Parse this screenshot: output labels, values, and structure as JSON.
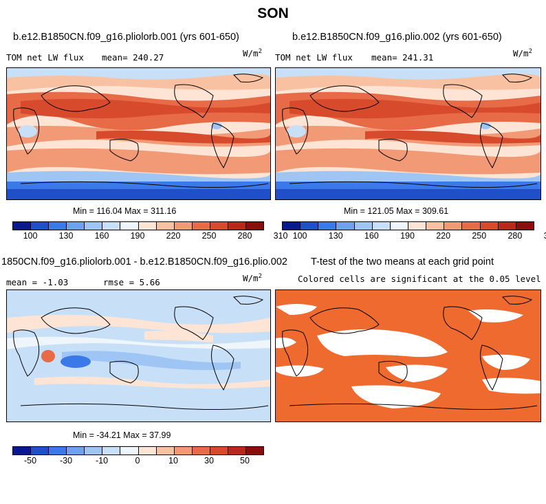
{
  "figure": {
    "title": "SON"
  },
  "panels": [
    {
      "title": "b.e12.B1850CN.f09_g16.pliolorb.001 (yrs 601-650)",
      "left_label": "TOM net LW flux",
      "mean_label": "mean= 240.27",
      "units": "W/m",
      "units_exp": "2",
      "minmax": "Min = 116.04 Max = 311.16"
    },
    {
      "title": "b.e12.B1850CN.f09_g16.plio.002 (yrs 601-650)",
      "left_label": "TOM net LW flux",
      "mean_label": "mean= 241.31",
      "units": "W/m",
      "units_exp": "2",
      "minmax": "Min = 121.05 Max = 309.61"
    },
    {
      "title": "1850CN.f09_g16.pliolorb.001 - b.e12.B1850CN.f09_g16.plio.002",
      "left_label": "mean =  -1.03",
      "mean_label": "rmse =   5.66",
      "units": "W/m",
      "units_exp": "2",
      "minmax": "Min = -34.21 Max = 37.99"
    },
    {
      "title": "T-test of the two means at each grid point",
      "subtitle": "Colored cells are significant at the 0.05 level"
    }
  ],
  "colorbar_abs": {
    "ticks": [
      "100",
      "130",
      "160",
      "190",
      "220",
      "250",
      "280",
      "310"
    ],
    "colors": [
      "#08188f",
      "#1f4fc9",
      "#3b78e8",
      "#6ea2ef",
      "#9ec5f4",
      "#c8e0f7",
      "#eef5fb",
      "#fde4d4",
      "#f8c2a2",
      "#f29a76",
      "#e86b48",
      "#d84a2c",
      "#b8291c",
      "#8a0f0c"
    ]
  },
  "colorbar_diff": {
    "ticks": [
      "-50",
      "-30",
      "-10",
      "0",
      "10",
      "30",
      "50"
    ],
    "colors": [
      "#08188f",
      "#1f4fc9",
      "#3b78e8",
      "#6ea2ef",
      "#9ec5f4",
      "#c8e0f7",
      "#eef5fb",
      "#fde4d4",
      "#f8c2a2",
      "#f29a76",
      "#e86b48",
      "#d84a2c",
      "#b8291c",
      "#8a0f0c"
    ]
  },
  "ttest_color": "#ee6a2f"
}
